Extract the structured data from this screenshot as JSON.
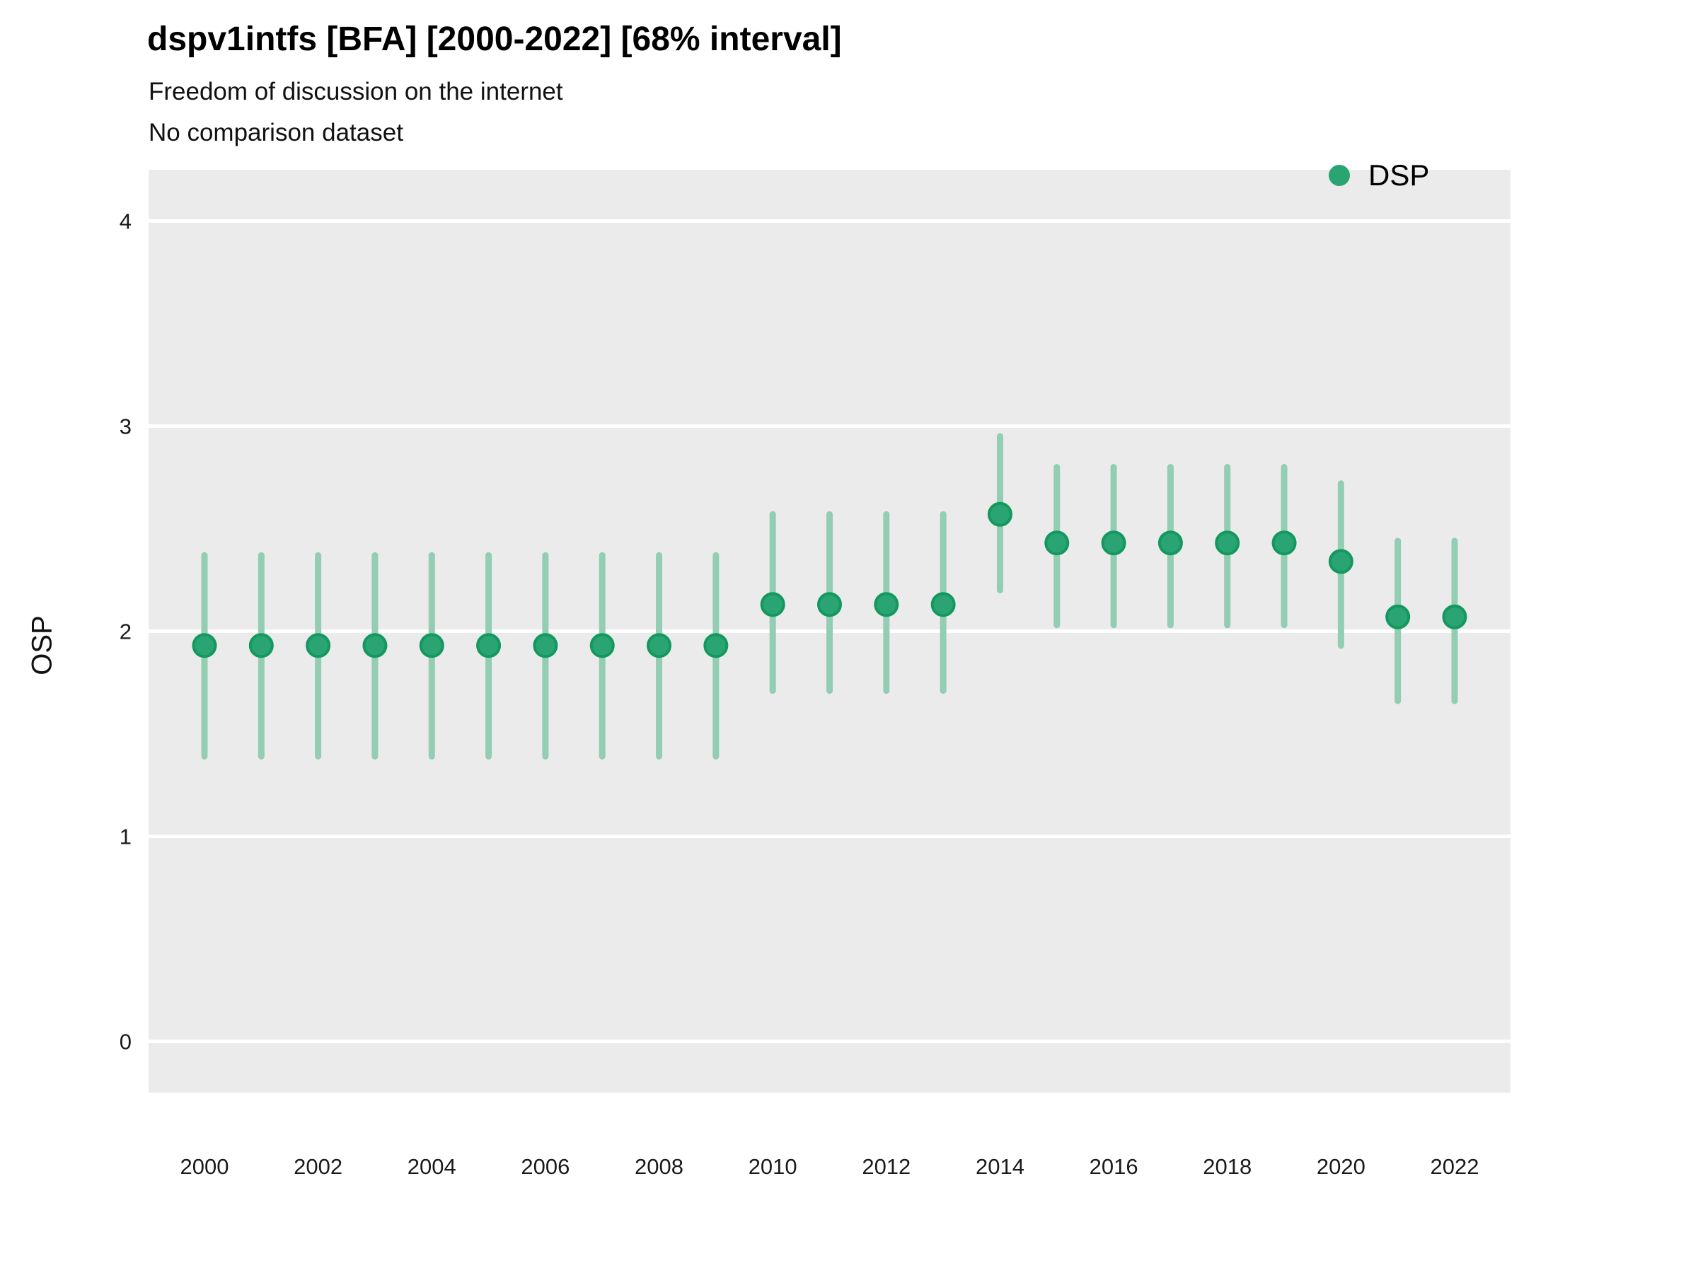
{
  "header": {
    "title": "dspv1intfs [BFA] [2000-2022] [68% interval]",
    "subtitle1": "Freedom of discussion on the internet",
    "subtitle2": "No comparison dataset"
  },
  "legend": {
    "label": "DSP"
  },
  "axes": {
    "y_label": "OSP",
    "y_ticks": [
      0,
      1,
      2,
      3,
      4
    ],
    "x_tick_years": [
      2000,
      2002,
      2004,
      2006,
      2008,
      2010,
      2012,
      2014,
      2016,
      2018,
      2020,
      2022
    ]
  },
  "chart_data": {
    "type": "pointrange",
    "title": "dspv1intfs [BFA] [2000-2022] [68% interval]",
    "subtitle": "Freedom of discussion on the internet",
    "note": "No comparison dataset",
    "interval": "68%",
    "xlabel": "",
    "ylabel": "OSP",
    "ylim": [
      -0.25,
      4.25
    ],
    "grid": "horizontal-major-only",
    "legend_position": "right-top",
    "x": [
      2000,
      2001,
      2002,
      2003,
      2004,
      2005,
      2006,
      2007,
      2008,
      2009,
      2010,
      2011,
      2012,
      2013,
      2014,
      2015,
      2016,
      2017,
      2018,
      2019,
      2020,
      2021,
      2022
    ],
    "series": [
      {
        "name": "DSP",
        "points": [
          1.93,
          1.93,
          1.93,
          1.93,
          1.93,
          1.93,
          1.93,
          1.93,
          1.93,
          1.93,
          2.13,
          2.13,
          2.13,
          2.13,
          2.57,
          2.43,
          2.43,
          2.43,
          2.43,
          2.43,
          2.34,
          2.07,
          2.07
        ],
        "lower": [
          1.39,
          1.39,
          1.39,
          1.39,
          1.39,
          1.39,
          1.39,
          1.39,
          1.39,
          1.39,
          1.71,
          1.71,
          1.71,
          1.71,
          2.2,
          2.03,
          2.03,
          2.03,
          2.03,
          2.03,
          1.93,
          1.66,
          1.66
        ],
        "upper": [
          2.37,
          2.37,
          2.37,
          2.37,
          2.37,
          2.37,
          2.37,
          2.37,
          2.37,
          2.37,
          2.57,
          2.57,
          2.57,
          2.57,
          2.95,
          2.8,
          2.8,
          2.8,
          2.8,
          2.8,
          2.72,
          2.44,
          2.44
        ]
      }
    ],
    "colors": {
      "point_fill": "#2BA473",
      "point_stroke": "#13985E",
      "bar": "#92CDB4",
      "panel_bg": "#EBEBEB",
      "gridline": "#FFFFFF",
      "tick_text": "#1a1a1a"
    }
  }
}
